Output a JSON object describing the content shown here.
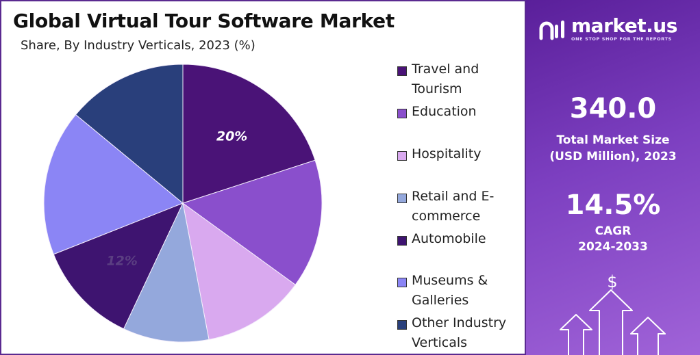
{
  "title": "Global Virtual Tour Software Market",
  "subtitle": "Share, By Industry Verticals, 2023 (%)",
  "chart_data": {
    "type": "pie",
    "title": "Global Virtual Tour Software Market",
    "subtitle": "Share, By Industry Verticals, 2023 (%)",
    "legend_position": "right",
    "slices": [
      {
        "label": "Travel and Tourism",
        "value": 20,
        "color": "#4a1377",
        "data_label": "20%"
      },
      {
        "label": "Education",
        "value": 15,
        "color": "#8a4fcc",
        "data_label": ""
      },
      {
        "label": "Hospitality",
        "value": 12,
        "color": "#d9a9ef",
        "data_label": ""
      },
      {
        "label": "Retail and E-commerce",
        "value": 10,
        "color": "#94a8dc",
        "data_label": ""
      },
      {
        "label": "Automobile",
        "value": 12,
        "color": "#3e1470",
        "data_label": "12%"
      },
      {
        "label": "Museums & Galleries",
        "value": 17,
        "color": "#8b85f5",
        "data_label": ""
      },
      {
        "label": "Other Industry Verticals",
        "value": 14,
        "color": "#293f7b",
        "data_label": ""
      }
    ]
  },
  "legend": [
    {
      "label": "Travel and Tourism",
      "color": "#4a1377"
    },
    {
      "label": "Education",
      "color": "#8a4fcc"
    },
    {
      "label": "Hospitality",
      "color": "#d9a9ef"
    },
    {
      "label": "Retail and E-commerce",
      "color": "#94a8dc"
    },
    {
      "label": "Automobile",
      "color": "#3e1470"
    },
    {
      "label": "Museums & Galleries",
      "color": "#8b85f5"
    },
    {
      "label": "Other Industry Verticals",
      "color": "#293f7b"
    }
  ],
  "brand": {
    "name": "market.us",
    "tagline": "ONE STOP SHOP FOR THE REPORTS",
    "logo_icon": "market-us-logo-icon"
  },
  "stats": {
    "market_size_value": "340.0",
    "market_size_label_line1": "Total Market Size",
    "market_size_label_line2": "(USD Million), 2023",
    "cagr_value": "14.5%",
    "cagr_label_line1": "CAGR",
    "cagr_label_line2": "2024-2033"
  },
  "decoration": {
    "icon": "growth-arrows-dollar-icon",
    "symbol": "$"
  },
  "colors": {
    "panel_gradient_start": "#5a1f9a",
    "panel_gradient_end": "#a063d8",
    "border": "#5a2a90"
  }
}
